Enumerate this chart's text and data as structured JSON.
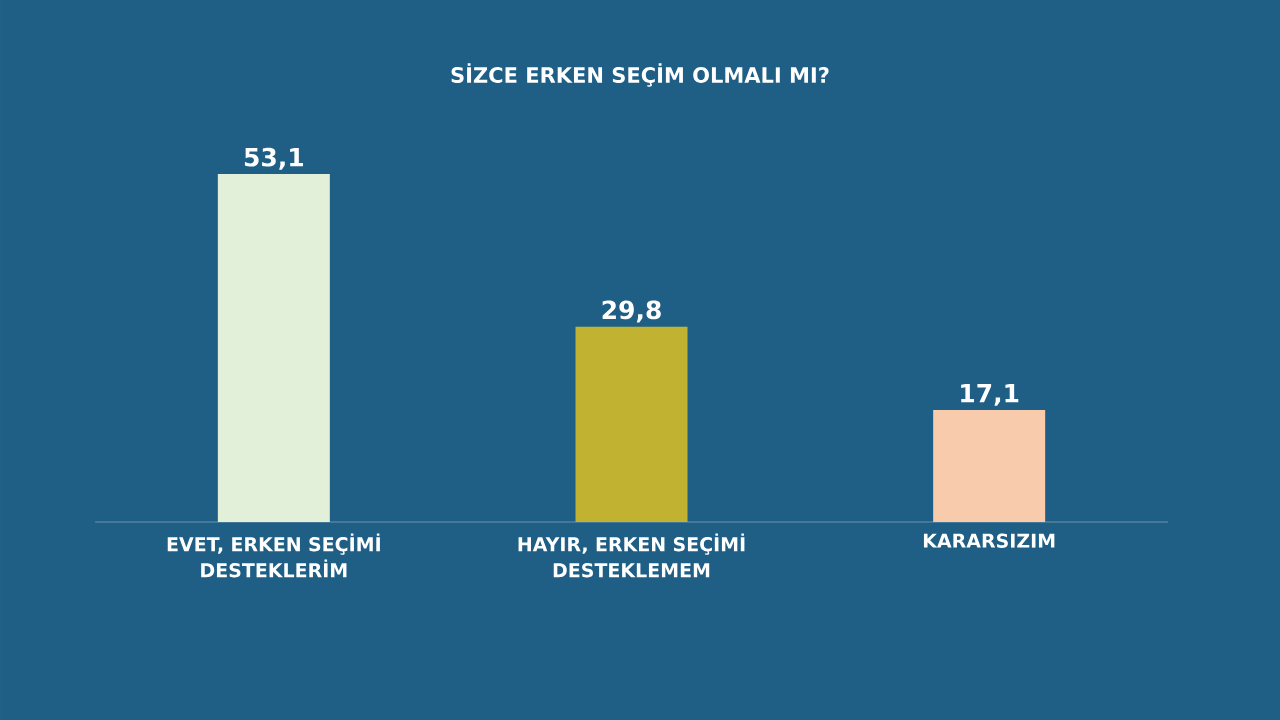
{
  "chart_data": {
    "type": "bar",
    "title": "SİZCE ERKEN SEÇİM OLMALI MI?",
    "categories": [
      "EVET, ERKEN SEÇİMİ DESTEKLERİM",
      "HAYIR, ERKEN SEÇİMİ DESTEKLEMEM",
      "KARARSIZIM"
    ],
    "values": [
      53.1,
      29.8,
      17.1
    ],
    "colors": [
      "#e2efd9",
      "#c2b232",
      "#f7cbac"
    ],
    "value_labels": [
      "53,1",
      "29,8",
      "17,1"
    ]
  }
}
